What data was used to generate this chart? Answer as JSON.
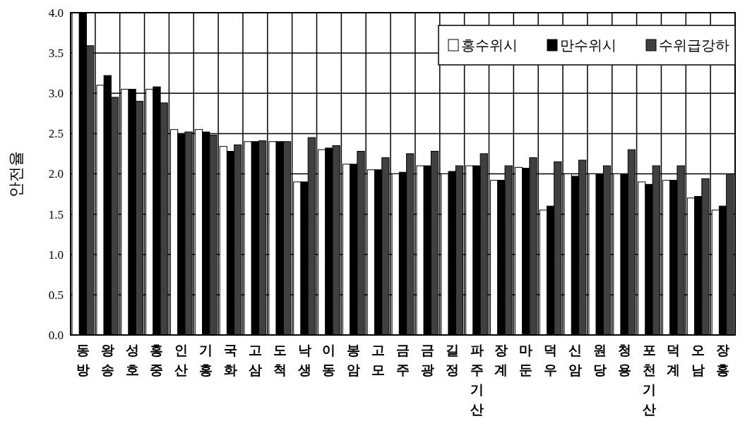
{
  "chart_data": {
    "type": "bar",
    "ylabel": "안전율",
    "categories": [
      "동방",
      "왕송",
      "성호",
      "홍중",
      "인산",
      "기홍",
      "국화",
      "고삼",
      "도척",
      "낙생",
      "이동",
      "봉암",
      "고모",
      "금주",
      "금광",
      "길정",
      "파주기산",
      "장계",
      "마둔",
      "덕우",
      "신암",
      "원당",
      "청용",
      "포천기산",
      "덕계",
      "오남",
      "장홍"
    ],
    "series": [
      {
        "name": "홍수위시",
        "color": "#ffffff",
        "values": [
          4.0,
          3.1,
          3.05,
          3.05,
          2.55,
          2.55,
          2.34,
          2.4,
          2.4,
          1.9,
          2.3,
          2.12,
          2.05,
          2.0,
          2.1,
          2.0,
          2.1,
          1.92,
          2.08,
          1.55,
          2.0,
          2.0,
          2.0,
          1.9,
          1.92,
          1.7,
          1.55
        ]
      },
      {
        "name": "만수위시",
        "color": "#000000",
        "values": [
          4.0,
          3.22,
          3.05,
          3.08,
          2.5,
          2.52,
          2.28,
          2.4,
          2.4,
          1.9,
          2.32,
          2.12,
          2.05,
          2.02,
          2.1,
          2.03,
          2.1,
          1.92,
          2.07,
          1.6,
          1.97,
          2.0,
          2.0,
          1.87,
          1.92,
          1.72,
          1.6
        ]
      },
      {
        "name": "수위급강하",
        "color": "#404040",
        "values": [
          3.59,
          2.95,
          2.9,
          2.88,
          2.52,
          2.48,
          2.36,
          2.41,
          2.4,
          2.45,
          2.35,
          2.28,
          2.2,
          2.25,
          2.28,
          2.1,
          2.25,
          2.1,
          2.2,
          2.15,
          2.17,
          2.1,
          2.3,
          2.1,
          2.1,
          1.94,
          2.0
        ]
      }
    ],
    "ylim": [
      0,
      4
    ],
    "yticks": [
      {
        "value": 0,
        "label": "0.0"
      },
      {
        "value": 0.5,
        "label": "0.5"
      },
      {
        "value": 1,
        "label": "1.0"
      },
      {
        "value": 1.5,
        "label": "1.5"
      },
      {
        "value": 2,
        "label": "2.0"
      },
      {
        "value": 2.5,
        "label": "2.5"
      },
      {
        "value": 3,
        "label": "3.0"
      },
      {
        "value": 3.5,
        "label": "3.5"
      },
      {
        "value": 4,
        "label": "4.0"
      }
    ],
    "grid": true,
    "legend": "top right"
  }
}
